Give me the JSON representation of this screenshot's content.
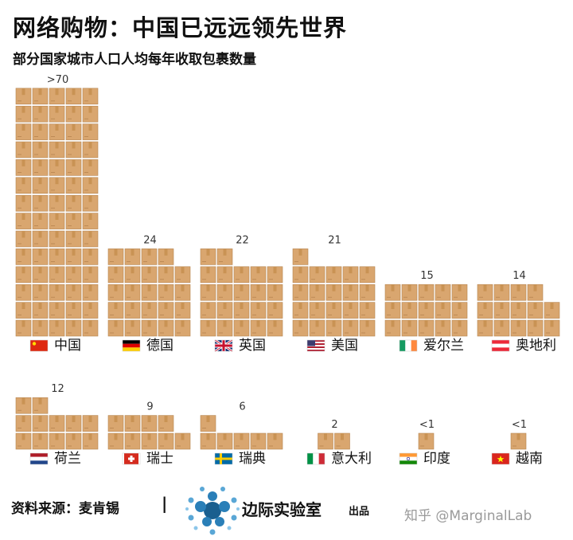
{
  "title": "网络购物：中国已远远领先世界",
  "subtitle": "部分国家城市人口人均每年收取包裹数量",
  "source": "资料来源：麦肯锡",
  "separator": "|",
  "brand": "边际实验室",
  "brand_sub": "出品",
  "watermark": "知乎 @MarginalLab",
  "colors": {
    "box": "#d9a66f",
    "box_edge": "#b6844f",
    "tape": "#c99354",
    "bg": "#ffffff"
  },
  "chart_data": {
    "type": "pictogram",
    "unit": "package icon",
    "series": [
      {
        "country": "中国",
        "label": ">70",
        "value": 70,
        "flag": "china-flag"
      },
      {
        "country": "德国",
        "label": "24",
        "value": 24,
        "flag": "germany-flag"
      },
      {
        "country": "英国",
        "label": "22",
        "value": 22,
        "flag": "uk-flag"
      },
      {
        "country": "美国",
        "label": "21",
        "value": 21,
        "flag": "usa-flag"
      },
      {
        "country": "爱尔兰",
        "label": "15",
        "value": 15,
        "flag": "ireland-flag"
      },
      {
        "country": "奥地利",
        "label": "14",
        "value": 14,
        "flag": "austria-flag"
      },
      {
        "country": "荷兰",
        "label": "12",
        "value": 12,
        "flag": "netherlands-flag"
      },
      {
        "country": "瑞士",
        "label": "9",
        "value": 9,
        "flag": "switzerland-flag"
      },
      {
        "country": "瑞典",
        "label": "6",
        "value": 6,
        "flag": "sweden-flag"
      },
      {
        "country": "意大利",
        "label": "2",
        "value": 2,
        "flag": "italy-flag"
      },
      {
        "country": "印度",
        "label": "<1",
        "value": 1,
        "flag": "india-flag"
      },
      {
        "country": "越南",
        "label": "<1",
        "value": 1,
        "flag": "vietnam-flag"
      }
    ]
  }
}
